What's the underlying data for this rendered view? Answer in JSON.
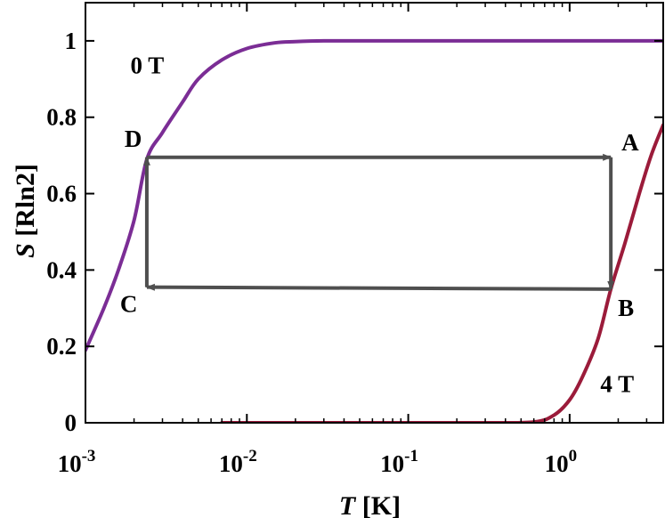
{
  "chart_data": {
    "type": "line",
    "xlabel": {
      "italic": "T",
      "rest": " [K]"
    },
    "ylabel": {
      "italic": "S",
      "rest": " [Rln2]"
    },
    "x_scale": "log",
    "xlim": [
      0.001,
      3.8
    ],
    "ylim": [
      0,
      1.1
    ],
    "x_ticks": [
      {
        "value": 0.001,
        "base": "10",
        "exp": "-3"
      },
      {
        "value": 0.01,
        "base": "10",
        "exp": "-2"
      },
      {
        "value": 0.1,
        "base": "10",
        "exp": "-1"
      },
      {
        "value": 1,
        "base": "10",
        "exp": "0"
      }
    ],
    "y_ticks": [
      {
        "value": 0,
        "label": "0"
      },
      {
        "value": 0.2,
        "label": "0.2"
      },
      {
        "value": 0.4,
        "label": "0.4"
      },
      {
        "value": 0.6,
        "label": "0.6"
      },
      {
        "value": 0.8,
        "label": "0.8"
      },
      {
        "value": 1,
        "label": "1"
      }
    ],
    "grid": false,
    "series": [
      {
        "name": "0 T",
        "color": "#7b2d95",
        "x": [
          0.001,
          0.0013,
          0.0016,
          0.002,
          0.0024,
          0.003,
          0.004,
          0.005,
          0.007,
          0.01,
          0.015,
          0.02,
          0.03,
          0.05,
          0.1,
          0.3,
          1,
          3.8
        ],
        "y": [
          0.19,
          0.3,
          0.4,
          0.53,
          0.69,
          0.76,
          0.84,
          0.9,
          0.95,
          0.98,
          0.995,
          0.998,
          1.0,
          1.0,
          1.0,
          1.0,
          1.0,
          1.0
        ]
      },
      {
        "name": "4 T",
        "color": "#9b1b3a",
        "x": [
          0.007,
          0.05,
          0.3,
          0.6,
          0.8,
          1.0,
          1.2,
          1.5,
          1.8,
          2.2,
          2.7,
          3.2,
          3.8
        ],
        "y": [
          0,
          0,
          0,
          0.002,
          0.02,
          0.06,
          0.12,
          0.22,
          0.35,
          0.47,
          0.6,
          0.7,
          0.78
        ]
      }
    ],
    "cycle": {
      "color": "#4f4f4f",
      "points": [
        {
          "label": "A",
          "x": 1.8,
          "y": 0.695
        },
        {
          "label": "B",
          "x": 1.8,
          "y": 0.35
        },
        {
          "label": "C",
          "x": 0.0024,
          "y": 0.355
        },
        {
          "label": "D",
          "x": 0.0024,
          "y": 0.695
        }
      ],
      "arrows": [
        [
          "D",
          "A"
        ],
        [
          "A",
          "B"
        ],
        [
          "B",
          "C"
        ],
        [
          "C",
          "D"
        ]
      ]
    },
    "annotations": [
      {
        "text": "0 T",
        "x": 0.0019,
        "y": 0.915
      },
      {
        "text": "4 T",
        "x": 1.55,
        "y": 0.08
      }
    ]
  }
}
